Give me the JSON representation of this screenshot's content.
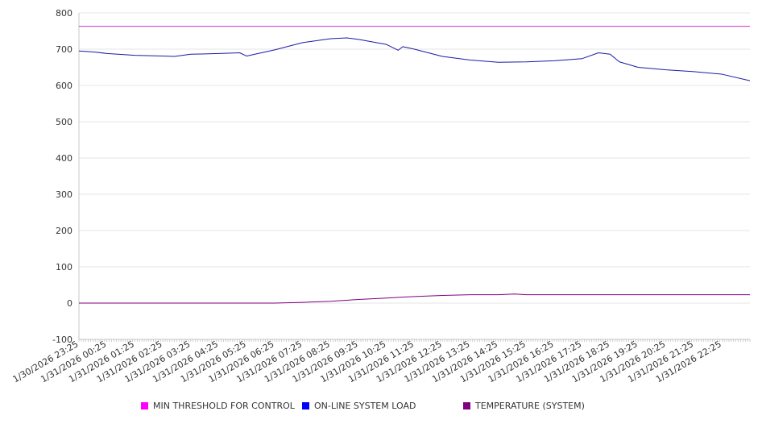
{
  "chart_data": {
    "type": "line",
    "ylim": [
      -100,
      800
    ],
    "y_ticks": [
      "800",
      "700",
      "600",
      "500",
      "400",
      "300",
      "200",
      "100",
      "0",
      "-100"
    ],
    "x_tick_labels": [
      "1/30/2026 23:25",
      "1/31/2026 00:25",
      "1/31/2026 01:25",
      "1/31/2026 02:25",
      "1/31/2026 03:25",
      "1/31/2026 04:25",
      "1/31/2026 05:25",
      "1/31/2026 06:25",
      "1/31/2026 07:25",
      "1/31/2026 08:25",
      "1/31/2026 09:25",
      "1/31/2026 10:25",
      "1/31/2026 11:25",
      "1/31/2026 12:25",
      "1/31/2026 13:25",
      "1/31/2026 14:25",
      "1/31/2026 15:25",
      "1/31/2026 16:25",
      "1/31/2026 17:25",
      "1/31/2026 18:25",
      "1/31/2026 19:25",
      "1/31/2026 20:25",
      "1/31/2026 21:25",
      "1/31/2026 22:25"
    ],
    "grid": true,
    "legend_position": "bottom",
    "series": [
      {
        "name": "MIN THRESHOLD FOR CONTROL",
        "color": "#cc33cc",
        "x": [
          "1/30/2026 23:25",
          "1/31/2026 23:25"
        ],
        "values": [
          763,
          763
        ]
      },
      {
        "name": "ON-LINE SYSTEM LOAD",
        "color": "#1a1aa8",
        "x": [
          "1/30/2026 23:25",
          "1/31/2026 00:00",
          "1/31/2026 00:25",
          "1/31/2026 01:25",
          "1/31/2026 02:25",
          "1/31/2026 02:50",
          "1/31/2026 03:25",
          "1/31/2026 04:25",
          "1/31/2026 05:10",
          "1/31/2026 05:25",
          "1/31/2026 06:25",
          "1/31/2026 07:25",
          "1/31/2026 08:25",
          "1/31/2026 09:00",
          "1/31/2026 09:25",
          "1/31/2026 10:25",
          "1/31/2026 10:50",
          "1/31/2026 11:00",
          "1/31/2026 11:25",
          "1/31/2026 12:25",
          "1/31/2026 13:25",
          "1/31/2026 14:25",
          "1/31/2026 15:25",
          "1/31/2026 16:25",
          "1/31/2026 17:25",
          "1/31/2026 18:00",
          "1/31/2026 18:25",
          "1/31/2026 18:45",
          "1/31/2026 19:25",
          "1/31/2026 20:25",
          "1/31/2026 21:25",
          "1/31/2026 22:25",
          "1/31/2026 23:25"
        ],
        "values": [
          695,
          692,
          688,
          683,
          681,
          680,
          686,
          688,
          690,
          681,
          698,
          718,
          729,
          731,
          727,
          713,
          697,
          707,
          700,
          680,
          670,
          664,
          665,
          668,
          674,
          690,
          686,
          665,
          650,
          643,
          638,
          631,
          613
        ]
      },
      {
        "name": "TEMPERATURE (SYSTEM)",
        "color": "#800080",
        "x": [
          "1/30/2026 23:25",
          "1/31/2026 06:25",
          "1/31/2026 07:25",
          "1/31/2026 08:25",
          "1/31/2026 09:25",
          "1/31/2026 10:25",
          "1/31/2026 11:25",
          "1/31/2026 12:25",
          "1/31/2026 13:25",
          "1/31/2026 14:25",
          "1/31/2026 15:00",
          "1/31/2026 15:25",
          "1/31/2026 23:25"
        ],
        "values": [
          0,
          0,
          2,
          5,
          10,
          14,
          18,
          21,
          23,
          23,
          25,
          23,
          23
        ]
      }
    ]
  }
}
